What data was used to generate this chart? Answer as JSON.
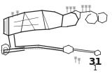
{
  "background_color": "#ffffff",
  "page_number": "31",
  "sub_number": "1",
  "text_color": "#1a1a1a",
  "line_color": "#2a2a2a",
  "lw_thick": 0.9,
  "lw_mid": 0.6,
  "lw_thin": 0.35,
  "figsize": [
    1.6,
    1.12
  ],
  "dpi": 100
}
